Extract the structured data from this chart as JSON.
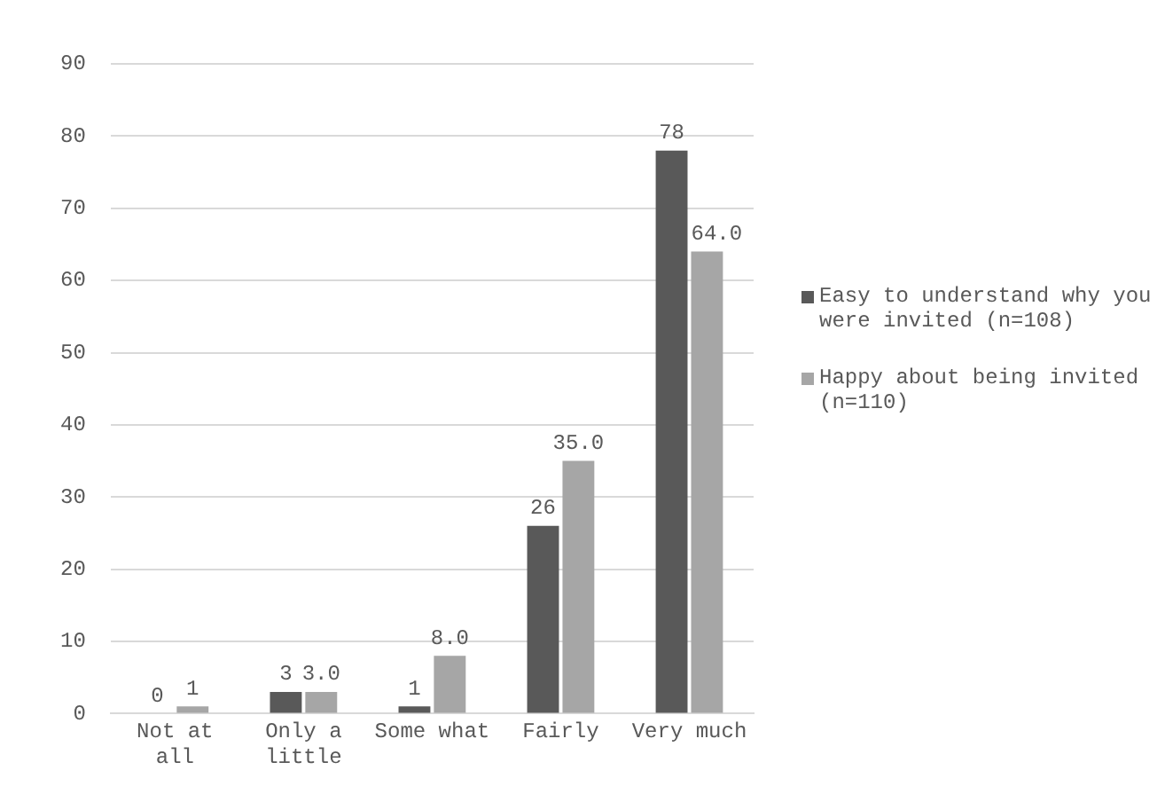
{
  "chart_data": {
    "type": "bar",
    "categories": [
      "Not at all",
      "Only a little",
      "Some what",
      "Fairly",
      "Very much"
    ],
    "series": [
      {
        "name": "Easy to understand why you were invited (n=108)",
        "color": "#595959",
        "values": [
          0,
          3,
          1,
          26,
          78
        ],
        "value_labels": [
          "0",
          "3",
          "1",
          "26",
          "78"
        ]
      },
      {
        "name": "Happy about being invited (n=110)",
        "color": "#a6a6a6",
        "values": [
          1,
          3,
          8,
          35,
          64
        ],
        "value_labels": [
          "1",
          "3.0",
          "8.0",
          "35.0",
          "64.0"
        ]
      }
    ],
    "ylim": [
      0,
      90
    ],
    "yticks": [
      0,
      10,
      20,
      30,
      40,
      50,
      60,
      70,
      80,
      90
    ],
    "grid": "y",
    "legend": "right"
  }
}
